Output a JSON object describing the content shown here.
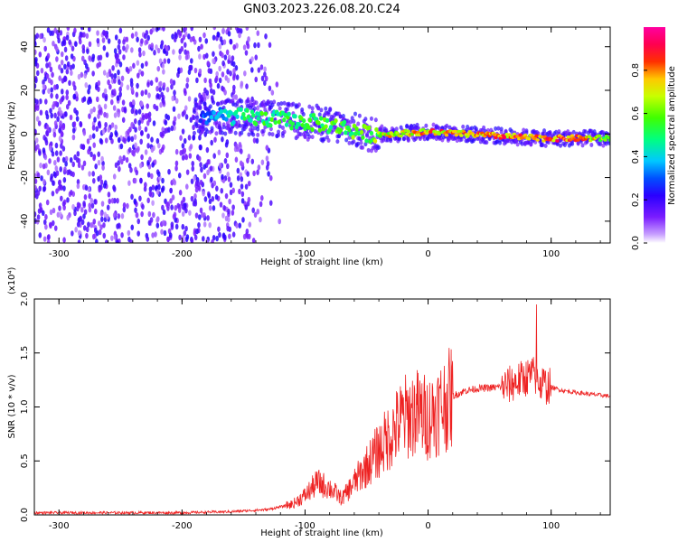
{
  "figure_title": "GN03.2023.226.08.20.C24",
  "colors": {
    "background": "#ffffff",
    "snr_line": "#ee2222",
    "axis": "#000000"
  },
  "chart_data": [
    {
      "type": "heatmap",
      "xlabel": "Height of straight line (km)",
      "ylabel": "Frequency (Hz)",
      "xlim": [
        -320,
        148
      ],
      "ylim": [
        -50,
        49
      ],
      "xticks": [
        -300,
        -200,
        -100,
        0,
        100
      ],
      "yticks": [
        -40,
        -20,
        0,
        20,
        40
      ],
      "colormap": "rainbow (purple→blue→cyan→green→yellow→red→magenta)",
      "colorbar": {
        "label": "Normalized spectral amplitude",
        "range": [
          0.0,
          1.0
        ],
        "ticks": [
          0.0,
          0.2,
          0.4,
          0.6,
          0.8
        ]
      },
      "ridge": [
        {
          "x": -185,
          "f": 8,
          "amp": 0.3
        },
        {
          "x": -155,
          "f": 8,
          "amp": 0.5
        },
        {
          "x": -130,
          "f": 7,
          "amp": 0.55
        },
        {
          "x": -110,
          "f": 6,
          "amp": 0.55
        },
        {
          "x": -90,
          "f": 5,
          "amp": 0.55
        },
        {
          "x": -70,
          "f": 3,
          "amp": 0.6
        },
        {
          "x": -50,
          "f": 0,
          "amp": 0.6
        },
        {
          "x": -30,
          "f": 0,
          "amp": 0.75
        },
        {
          "x": 0,
          "f": 1,
          "amp": 0.8
        },
        {
          "x": 30,
          "f": 0,
          "amp": 0.85
        },
        {
          "x": 60,
          "f": -1,
          "amp": 0.85
        },
        {
          "x": 90,
          "f": -2,
          "amp": 0.85
        },
        {
          "x": 120,
          "f": -2,
          "amp": 0.9
        },
        {
          "x": 148,
          "f": -2,
          "amp": 0.6
        }
      ],
      "noise_region_x": [
        -320,
        -120
      ]
    },
    {
      "type": "line",
      "xlabel": "Height of straight line (km)",
      "ylabel": "SNR (10 * v/v)",
      "y_multiplier": "(x10⁴)",
      "xlim": [
        -320,
        148
      ],
      "ylim": [
        0.0,
        2.0
      ],
      "xticks": [
        -300,
        -200,
        -100,
        0,
        100
      ],
      "yticks": [
        0.0,
        0.5,
        1.0,
        1.5,
        2.0
      ],
      "series": [
        {
          "points": [
            [
              -320,
              0.02
            ],
            [
              -250,
              0.02
            ],
            [
              -200,
              0.02
            ],
            [
              -160,
              0.03
            ],
            [
              -130,
              0.05
            ],
            [
              -110,
              0.1
            ],
            [
              -100,
              0.18
            ],
            [
              -90,
              0.3
            ],
            [
              -80,
              0.25
            ],
            [
              -70,
              0.15
            ],
            [
              -60,
              0.3
            ],
            [
              -50,
              0.45
            ],
            [
              -40,
              0.6
            ],
            [
              -30,
              0.75
            ],
            [
              -20,
              0.9
            ],
            [
              -10,
              0.95
            ],
            [
              0,
              0.9
            ],
            [
              10,
              1.0
            ],
            [
              20,
              1.1
            ],
            [
              30,
              1.15
            ],
            [
              40,
              1.17
            ],
            [
              55,
              1.18
            ],
            [
              65,
              1.2
            ],
            [
              75,
              1.25
            ],
            [
              85,
              1.3
            ],
            [
              95,
              1.2
            ],
            [
              110,
              1.15
            ],
            [
              130,
              1.12
            ],
            [
              148,
              1.1
            ]
          ]
        }
      ]
    }
  ]
}
